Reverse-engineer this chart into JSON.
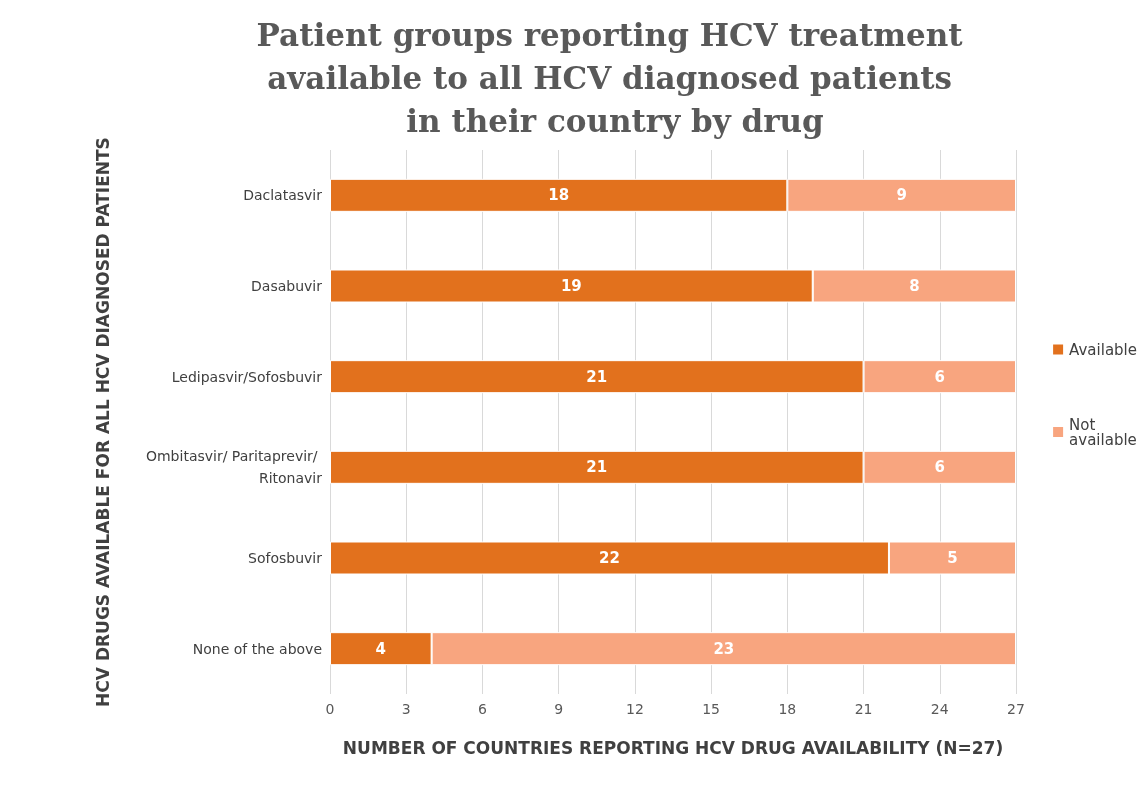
{
  "chart_data": {
    "type": "bar",
    "orientation": "horizontal",
    "stacked": true,
    "title": "Patient groups reporting HCV treatment available to all HCV diagnosed patients in their country by drug",
    "xlabel": "NUMBER OF COUNTRIES REPORTING HCV DRUG AVAILABILITY (N=27)",
    "ylabel": "HCV DRUGS AVAILABLE FOR ALL HCV DIAGNOSED PATIENTS",
    "categories": [
      "Daclatasvir",
      "Dasabuvir",
      "Ledipasvir/Sofosbuvir",
      "Ombitasvir/ Paritaprevir/ Ritonavir",
      "Sofosbuvir",
      "None of the above"
    ],
    "series": [
      {
        "name": "Available",
        "color": "#e2711d",
        "values": [
          18,
          19,
          21,
          21,
          22,
          4
        ]
      },
      {
        "name": "Not available",
        "color": "#f8a57f",
        "values": [
          9,
          8,
          6,
          6,
          5,
          23
        ]
      }
    ],
    "xlim": [
      0,
      27
    ],
    "xticks": [
      0,
      3,
      6,
      9,
      12,
      15,
      18,
      21,
      24,
      27
    ],
    "grid": "x",
    "legend": "right",
    "data_labels": true
  }
}
